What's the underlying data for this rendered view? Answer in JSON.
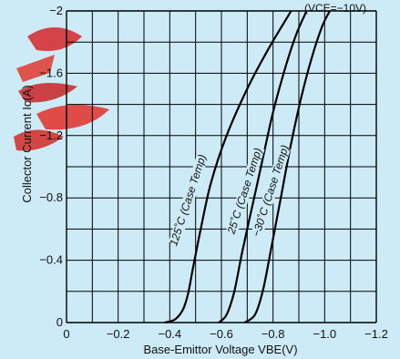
{
  "chart_data": {
    "type": "line",
    "title": "",
    "condition_note": "(VCE=−10V)",
    "xlabel": "Base-Emittor Voltage VBE(V)",
    "ylabel": "Collector Current Ic(A)",
    "xlim": [
      0,
      -1.2
    ],
    "ylim": [
      0,
      -2
    ],
    "x_ticks": [
      "0",
      "−0.2",
      "−0.4",
      "−0.6",
      "−0.8",
      "−1.0",
      "−1.2"
    ],
    "y_ticks": [
      "0",
      "−0.4",
      "−0.8",
      "−1.2",
      "−1.6",
      "−2"
    ],
    "grid": true,
    "series": [
      {
        "name": "125˚C (Case Temp)",
        "points": [
          [
            -0.38,
            0
          ],
          [
            -0.42,
            -0.02
          ],
          [
            -0.45,
            -0.08
          ],
          [
            -0.47,
            -0.18
          ],
          [
            -0.49,
            -0.35
          ],
          [
            -0.52,
            -0.6
          ],
          [
            -0.56,
            -0.9
          ],
          [
            -0.62,
            -1.2
          ],
          [
            -0.7,
            -1.5
          ],
          [
            -0.78,
            -1.75
          ],
          [
            -0.87,
            -2.0
          ]
        ]
      },
      {
        "name": "25˚C (Case Temp)",
        "points": [
          [
            -0.59,
            0
          ],
          [
            -0.62,
            -0.05
          ],
          [
            -0.65,
            -0.2
          ],
          [
            -0.68,
            -0.45
          ],
          [
            -0.72,
            -0.75
          ],
          [
            -0.76,
            -1.05
          ],
          [
            -0.8,
            -1.35
          ],
          [
            -0.85,
            -1.65
          ],
          [
            -0.89,
            -1.85
          ],
          [
            -0.93,
            -2.0
          ]
        ]
      },
      {
        "name": "−30˚C (Case Temp)",
        "points": [
          [
            -0.69,
            0
          ],
          [
            -0.73,
            -0.05
          ],
          [
            -0.76,
            -0.2
          ],
          [
            -0.79,
            -0.45
          ],
          [
            -0.83,
            -0.8
          ],
          [
            -0.87,
            -1.15
          ],
          [
            -0.91,
            -1.45
          ],
          [
            -0.95,
            -1.7
          ],
          [
            -0.99,
            -1.9
          ],
          [
            -1.02,
            -2.0
          ]
        ]
      }
    ],
    "colors": {
      "background": "#cdeaf7",
      "curve": "#000000",
      "grid": "#000000"
    }
  }
}
